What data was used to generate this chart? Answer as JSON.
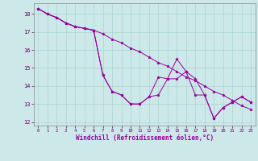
{
  "xlabel": "Windchill (Refroidissement éolien,°C)",
  "bg_color": "#cce8e8",
  "grid_color": "#aad4d4",
  "line_color": "#990099",
  "marker_color": "#990099",
  "xlim": [
    -0.5,
    23.5
  ],
  "ylim": [
    11.8,
    18.6
  ],
  "yticks": [
    12,
    13,
    14,
    15,
    16,
    17,
    18
  ],
  "xticks": [
    0,
    1,
    2,
    3,
    4,
    5,
    6,
    7,
    8,
    9,
    10,
    11,
    12,
    13,
    14,
    15,
    16,
    17,
    18,
    19,
    20,
    21,
    22,
    23
  ],
  "series": [
    [
      18.3,
      18.0,
      17.8,
      17.5,
      17.3,
      17.2,
      17.1,
      14.6,
      13.7,
      13.5,
      13.0,
      13.0,
      13.4,
      14.5,
      14.4,
      15.5,
      14.8,
      14.4,
      13.5,
      12.2,
      12.8,
      13.1,
      13.4,
      13.1
    ],
    [
      18.3,
      18.0,
      17.8,
      17.5,
      17.3,
      17.2,
      17.1,
      16.9,
      16.6,
      16.4,
      16.1,
      15.9,
      15.6,
      15.3,
      15.1,
      14.8,
      14.5,
      14.3,
      14.0,
      13.7,
      13.5,
      13.2,
      12.9,
      12.7
    ],
    [
      18.3,
      18.0,
      17.8,
      17.5,
      17.3,
      17.2,
      17.1,
      14.6,
      13.7,
      13.5,
      13.0,
      13.0,
      13.4,
      13.5,
      14.4,
      14.4,
      14.8,
      13.5,
      13.5,
      12.2,
      12.8,
      13.1,
      13.4,
      13.1
    ]
  ]
}
